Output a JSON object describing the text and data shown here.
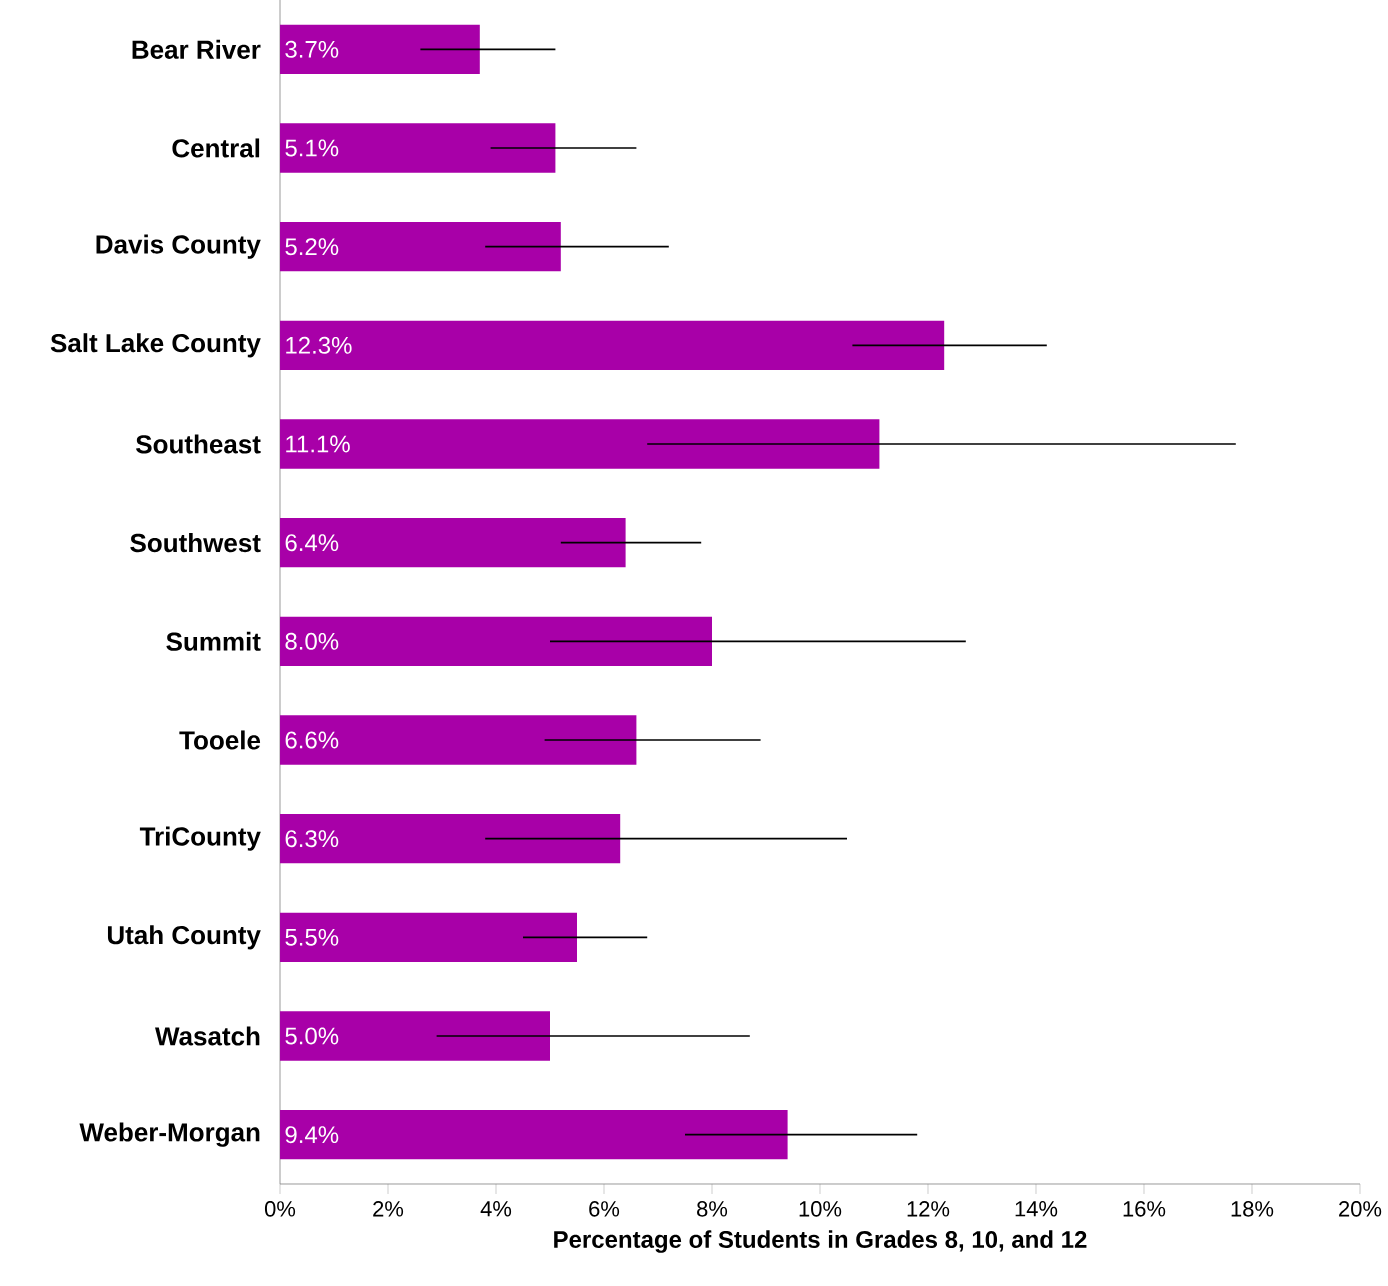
{
  "chart_data": {
    "type": "bar",
    "orientation": "horizontal",
    "xlabel": "Percentage of Students in Grades 8, 10, and 12",
    "categories": [
      "Bear River",
      "Central",
      "Davis County",
      "Salt Lake County",
      "Southeast",
      "Southwest",
      "Summit",
      "Tooele",
      "TriCounty",
      "Utah County",
      "Wasatch",
      "Weber-Morgan"
    ],
    "values": [
      3.7,
      5.1,
      5.2,
      12.3,
      11.1,
      6.4,
      8.0,
      6.6,
      6.3,
      5.5,
      5.0,
      9.4
    ],
    "value_labels": [
      "3.7%",
      "5.1%",
      "5.2%",
      "12.3%",
      "11.1%",
      "6.4%",
      "8.0%",
      "6.6%",
      "6.3%",
      "5.5%",
      "5.0%",
      "9.4%"
    ],
    "errors": [
      [
        2.6,
        5.1
      ],
      [
        3.9,
        6.6
      ],
      [
        3.8,
        7.2
      ],
      [
        10.6,
        14.2
      ],
      [
        6.8,
        17.7
      ],
      [
        5.2,
        7.8
      ],
      [
        5.0,
        12.7
      ],
      [
        4.9,
        8.9
      ],
      [
        3.8,
        10.5
      ],
      [
        4.5,
        6.8
      ],
      [
        2.9,
        8.7
      ],
      [
        7.5,
        11.8
      ]
    ],
    "color": "#a800a8",
    "xlim": [
      0,
      20
    ],
    "xticks": [
      {
        "value": 0,
        "label": "0%"
      },
      {
        "value": 2,
        "label": "2%"
      },
      {
        "value": 4,
        "label": "4%"
      },
      {
        "value": 6,
        "label": "6%"
      },
      {
        "value": 8,
        "label": "8%"
      },
      {
        "value": 10,
        "label": "10%"
      },
      {
        "value": 12,
        "label": "12%"
      },
      {
        "value": 14,
        "label": "14%"
      },
      {
        "value": 16,
        "label": "16%"
      },
      {
        "value": 18,
        "label": "18%"
      },
      {
        "value": 20,
        "label": "20%"
      }
    ],
    "grid": false
  }
}
